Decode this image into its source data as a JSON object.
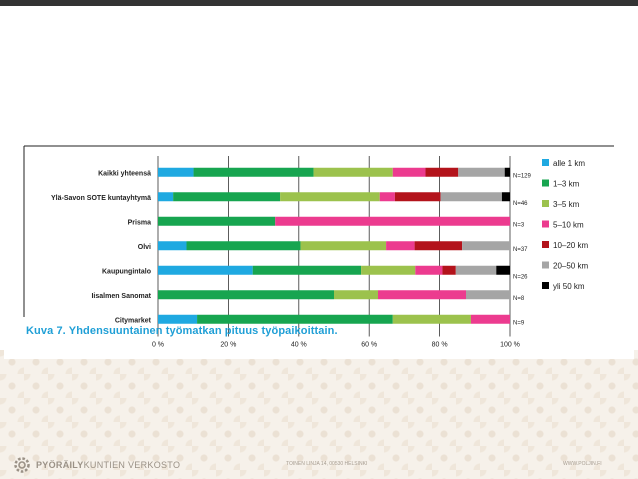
{
  "caption": "Kuva 7. Yhdensuuntainen työmatkan pituus työpaikoittain.",
  "footer": {
    "logo_bold": "PYÖRÄILY",
    "logo_light": "KUNTIEN VERKOSTO",
    "address": "TOINEN LINJA 14, 00530 HELSINKI",
    "website": "WWW.POLJIN.FI"
  },
  "colors": {
    "top_strip": "#333333",
    "caption": "#1f9fd6",
    "grid": "#333333",
    "series": [
      "#1fa9e1",
      "#17a550",
      "#9cc24d",
      "#ec3b8f",
      "#b3131b",
      "#a5a5a5",
      "#000000"
    ]
  },
  "chart_data": {
    "type": "bar",
    "orientation": "horizontal",
    "stacked": true,
    "categories": [
      "Kaikki yhteensä",
      "Ylä-Savon SOTE kuntayhtymä",
      "Prisma",
      "Olvi",
      "Kaupungintalo",
      "Iisalmen Sanomat",
      "Citymarket"
    ],
    "n_labels": [
      "N=129",
      "N=46",
      "N=3",
      "N=37",
      "N=26",
      "N=8",
      "N=9"
    ],
    "xlim": [
      0,
      100
    ],
    "xticks": [
      "0 %",
      "20 %",
      "40 %",
      "60 %",
      "80 %",
      "100 %"
    ],
    "grid": true,
    "legend": "right",
    "series": [
      {
        "name": "alle 1 km",
        "values": [
          10.1,
          4.3,
          0,
          8.1,
          26.9,
          0,
          11.1
        ]
      },
      {
        "name": "1–3 km",
        "values": [
          34.1,
          30.4,
          33.3,
          32.4,
          30.8,
          50.0,
          55.6
        ]
      },
      {
        "name": "3–5 km",
        "values": [
          22.5,
          28.3,
          0,
          24.3,
          15.4,
          12.5,
          22.2
        ]
      },
      {
        "name": "5–10 km",
        "values": [
          9.3,
          4.3,
          66.7,
          8.1,
          7.7,
          25.0,
          11.1
        ]
      },
      {
        "name": "10–20 km",
        "values": [
          9.3,
          13.0,
          0,
          13.5,
          3.8,
          0,
          0
        ]
      },
      {
        "name": "20–50 km",
        "values": [
          13.2,
          17.4,
          0,
          13.6,
          11.5,
          12.5,
          0
        ]
      },
      {
        "name": "yli 50 km",
        "values": [
          1.5,
          2.3,
          0,
          0,
          3.9,
          0,
          0
        ]
      }
    ]
  }
}
